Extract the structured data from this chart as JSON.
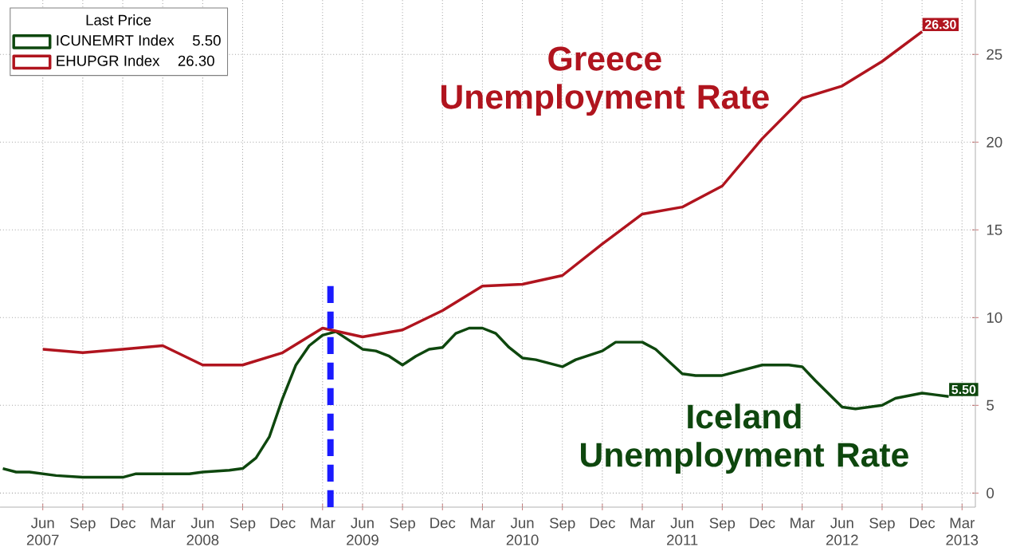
{
  "chart_data": {
    "type": "line",
    "legend_title": "Last Price",
    "legend": "top left",
    "grid": true,
    "line_style": "solid",
    "annotations": [
      "Iceland Unemployment Rate",
      "Greece Unemployment Rate"
    ],
    "xlim": [
      "2007-02-25",
      "2013-04-01"
    ],
    "ylim": [
      -0.8,
      28.1
    ],
    "yticks": [
      0,
      5,
      10,
      15,
      20,
      25
    ],
    "xticks": [
      {
        "value": "2007-06",
        "label": "Jun 2007"
      },
      {
        "value": "2007-09",
        "label": "Sep"
      },
      {
        "value": "2007-12",
        "label": "Dec"
      },
      {
        "value": "2008-03",
        "label": "Mar"
      },
      {
        "value": "2008-06",
        "label": "Jun 2008"
      },
      {
        "value": "2008-09",
        "label": "Sep"
      },
      {
        "value": "2008-12",
        "label": "Dec"
      },
      {
        "value": "2009-03",
        "label": "Mar"
      },
      {
        "value": "2009-06",
        "label": "Jun 2009"
      },
      {
        "value": "2009-09",
        "label": "Sep"
      },
      {
        "value": "2009-12",
        "label": "Dec"
      },
      {
        "value": "2010-03",
        "label": "Mar"
      },
      {
        "value": "2010-06",
        "label": "Jun 2010"
      },
      {
        "value": "2010-09",
        "label": "Sep"
      },
      {
        "value": "2010-12",
        "label": "Dec"
      },
      {
        "value": "2011-03",
        "label": "Mar"
      },
      {
        "value": "2011-06",
        "label": "Jun 2011"
      },
      {
        "value": "2011-09",
        "label": "Sep"
      },
      {
        "value": "2011-12",
        "label": "Dec"
      },
      {
        "value": "2012-03",
        "label": "Mar"
      },
      {
        "value": "2012-06",
        "label": "Jun 2012"
      },
      {
        "value": "2012-09",
        "label": "Sep"
      },
      {
        "value": "2012-12",
        "label": "Dec"
      },
      {
        "value": "2013-03",
        "label": "Mar 2013"
      }
    ],
    "ref_lines": [
      {
        "axis": "x",
        "value": "2009-03-19",
        "color": "#1a1aff",
        "line_style": "dashed"
      }
    ],
    "series": [
      {
        "name": "ICUNEMRT Index",
        "color": "#0e470e",
        "x": [
          "2007-03",
          "2007-04",
          "2007-05",
          "2007-07",
          "2007-09",
          "2007-12",
          "2008-01",
          "2008-05",
          "2008-06",
          "2008-08",
          "2008-09",
          "2008-10",
          "2008-11",
          "2008-12",
          "2009-01",
          "2009-02",
          "2009-03",
          "2009-04",
          "2009-05",
          "2009-06",
          "2009-07",
          "2009-08",
          "2009-09",
          "2009-10",
          "2009-11",
          "2009-12",
          "2010-01",
          "2010-02",
          "2010-03",
          "2010-04",
          "2010-05",
          "2010-06",
          "2010-07",
          "2010-09",
          "2010-10",
          "2010-12",
          "2011-01",
          "2011-03",
          "2011-04",
          "2011-06",
          "2011-07",
          "2011-09",
          "2011-12",
          "2012-02",
          "2012-03",
          "2012-04",
          "2012-06",
          "2012-07",
          "2012-09",
          "2012-10",
          "2012-12",
          "2013-01",
          "2013-02"
        ],
        "values": [
          1.4,
          1.2,
          1.2,
          1.0,
          0.9,
          0.9,
          1.1,
          1.1,
          1.2,
          1.3,
          1.4,
          2.0,
          3.2,
          5.4,
          7.3,
          8.4,
          9.0,
          9.2,
          8.7,
          8.2,
          8.1,
          7.8,
          7.3,
          7.8,
          8.2,
          8.3,
          9.1,
          9.4,
          9.4,
          9.1,
          8.3,
          7.7,
          7.6,
          7.2,
          7.6,
          8.1,
          8.6,
          8.6,
          8.2,
          6.8,
          6.7,
          6.7,
          7.3,
          7.3,
          7.2,
          6.4,
          4.9,
          4.8,
          5.0,
          5.4,
          5.7,
          5.6,
          5.5
        ],
        "value_labels": [
          null,
          null,
          null,
          null,
          null,
          null,
          null,
          null,
          null,
          null,
          null,
          null,
          null,
          null,
          null,
          null,
          null,
          null,
          null,
          null,
          null,
          null,
          null,
          null,
          null,
          null,
          null,
          null,
          null,
          null,
          null,
          null,
          null,
          null,
          null,
          null,
          null,
          null,
          null,
          null,
          null,
          null,
          null,
          null,
          null,
          null,
          null,
          null,
          null,
          null,
          null,
          null,
          "5.50"
        ]
      },
      {
        "name": "EHUPGR Index",
        "color": "#b0141e",
        "x": [
          "2007-06",
          "2007-09",
          "2007-12",
          "2008-03",
          "2008-06",
          "2008-09",
          "2008-12",
          "2009-03",
          "2009-06",
          "2009-09",
          "2009-12",
          "2010-03",
          "2010-06",
          "2010-09",
          "2010-12",
          "2011-03",
          "2011-06",
          "2011-09",
          "2011-12",
          "2012-03",
          "2012-06",
          "2012-09",
          "2012-12"
        ],
        "values": [
          8.2,
          8.0,
          8.2,
          8.4,
          7.3,
          7.3,
          8.0,
          9.4,
          8.9,
          9.3,
          10.4,
          11.8,
          11.9,
          12.4,
          14.2,
          15.9,
          16.3,
          17.5,
          20.2,
          22.5,
          23.2,
          24.6,
          26.3
        ],
        "value_labels": [
          null,
          null,
          null,
          null,
          null,
          null,
          null,
          null,
          null,
          null,
          null,
          null,
          null,
          null,
          null,
          null,
          null,
          null,
          null,
          null,
          null,
          null,
          "26.30"
        ]
      }
    ]
  }
}
